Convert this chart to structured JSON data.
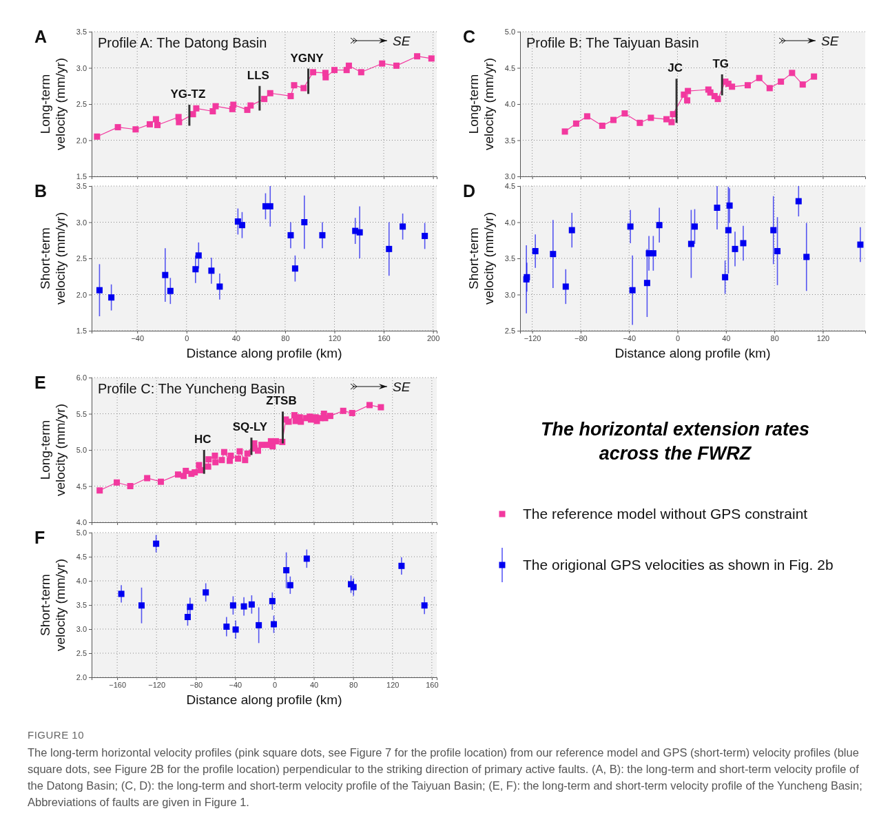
{
  "chart_data": [
    {
      "type": "line",
      "title": "A",
      "subtitle": "Profile A: The Datong Basin",
      "ylabel": "Long-term velocity (mm/yr)",
      "xlim": [
        -77,
        203
      ],
      "ylim": [
        1.5,
        3.5
      ],
      "xticks": [
        -40,
        0,
        40,
        80,
        120,
        160,
        200
      ],
      "yticks": [
        1.5,
        {
          "value": 2,
          "label": "2.0"
        },
        2.5,
        {
          "value": 3,
          "label": "3.0"
        },
        3.5
      ],
      "tick_labels": "y",
      "grid": true,
      "marker": "square",
      "annotations": [
        "SE",
        {
          "text": "YG-TZ",
          "x": 2.3,
          "y": 2.49
        },
        {
          "text": "LLS",
          "x": 59.3,
          "y": 2.75
        },
        {
          "text": "YGNY",
          "x": 98.8,
          "y": 2.99
        }
      ],
      "series": [
        {
          "type": "line",
          "marker": "none",
          "color": "#333333",
          "x": [
            2.3,
            2.3
          ],
          "values": [
            2.2,
            2.49
          ]
        },
        {
          "type": "line",
          "marker": "none",
          "color": "#333333",
          "x": [
            59.3,
            59.3
          ],
          "values": [
            2.41,
            2.75
          ]
        },
        {
          "type": "line",
          "marker": "none",
          "color": "#333333",
          "x": [
            98.8,
            98.8
          ],
          "values": [
            2.64,
            2.99
          ]
        },
        {
          "color": "#f2399f",
          "x": [
            -72.6,
            -55.7,
            -41.3,
            -29.8,
            -24.8,
            -23.6,
            -6.5,
            -6.1,
            5.2,
            7.9,
            21.3,
            23.6,
            37.2,
            38.0,
            49.3,
            52.0,
            63.1,
            67.9,
            84.5,
            87.3,
            95.0,
            102.7,
            112.7,
            112.9,
            120.0,
            129.9,
            131.7,
            141.7,
            158.7,
            170.3,
            187.1,
            198.7
          ],
          "values": [
            2.05,
            2.18,
            2.15,
            2.22,
            2.29,
            2.21,
            2.32,
            2.25,
            2.36,
            2.44,
            2.4,
            2.47,
            2.43,
            2.49,
            2.42,
            2.48,
            2.57,
            2.65,
            2.61,
            2.76,
            2.72,
            2.94,
            2.93,
            2.87,
            2.97,
            2.97,
            3.03,
            2.94,
            3.06,
            3.03,
            3.16,
            3.13
          ]
        }
      ]
    },
    {
      "type": "scatter",
      "title": "B",
      "ylabel": "Short-term velocity (mm/yr)",
      "xlabel": "Distance along profile (km)",
      "xlim": [
        -77,
        203
      ],
      "ylim": [
        1.5,
        3.5
      ],
      "xticks": [
        -40,
        0,
        40,
        80,
        120,
        160,
        200
      ],
      "yticks": [
        1.5,
        {
          "value": 2,
          "label": "2.0"
        },
        2.5,
        {
          "value": 3,
          "label": "3.0"
        },
        3.5
      ],
      "grid": true,
      "marker": "square",
      "series": [
        {
          "color": "#0000f0",
          "x": [
            -70.6,
            -61.0,
            -17.3,
            -13.1,
            7.3,
            9.8,
            20.2,
            26.9,
            41.7,
            45.1,
            64.1,
            67.9,
            84.5,
            88.1,
            95.6,
            110.2,
            136.9,
            140.5,
            164.3,
            175.4,
            193.3
          ],
          "values": [
            2.06,
            1.96,
            2.27,
            2.05,
            2.35,
            2.54,
            2.33,
            2.11,
            3.01,
            2.96,
            3.22,
            3.22,
            2.82,
            2.36,
            3.0,
            2.82,
            2.88,
            2.86,
            2.63,
            2.94,
            2.81
          ],
          "errors": [
            0.36,
            0.18,
            0.37,
            0.18,
            0.19,
            0.18,
            0.18,
            0.18,
            0.18,
            0.18,
            0.18,
            0.28,
            0.18,
            0.18,
            0.37,
            0.18,
            0.18,
            0.36,
            0.37,
            0.18,
            0.18
          ]
        }
      ]
    },
    {
      "type": "line",
      "title": "C",
      "subtitle": "Profile B: The Taiyuan Basin",
      "ylabel": "Long-term velocity (mm/yr)",
      "xlim": [
        -130,
        155
      ],
      "ylim": [
        3,
        5
      ],
      "xticks": [
        -120,
        -80,
        -40,
        0,
        40,
        80,
        120
      ],
      "yticks": [
        {
          "value": 3,
          "label": "3.0"
        },
        3.5,
        {
          "value": 4,
          "label": "4.0"
        },
        4.5,
        {
          "value": 5,
          "label": "5.0"
        }
      ],
      "tick_labels": "y",
      "grid": true,
      "marker": "square",
      "annotations": [
        "SE",
        {
          "text": "JC",
          "x": -0.8,
          "y": 4.35
        },
        {
          "text": "TG",
          "x": 36.8,
          "y": 4.41
        }
      ],
      "series": [
        {
          "type": "line",
          "marker": "none",
          "color": "#333333",
          "x": [
            -0.8,
            -0.8
          ],
          "values": [
            3.74,
            4.35
          ]
        },
        {
          "type": "line",
          "marker": "none",
          "color": "#333333",
          "x": [
            36.8,
            36.8
          ],
          "values": [
            4.12,
            4.41
          ]
        },
        {
          "color": "#f2399f",
          "x": [
            -93.0,
            -83.7,
            -74.6,
            -62.1,
            -52.9,
            -43.6,
            -31.1,
            -22.0,
            -9.1,
            -4.9,
            -3.7,
            5.3,
            8.0,
            8.6,
            25.5,
            27.1,
            30.6,
            33.3,
            39.5,
            42.0,
            45.0,
            58.0,
            67.5,
            76.1,
            85.4,
            94.6,
            103.4,
            112.7
          ],
          "values": [
            3.62,
            3.73,
            3.83,
            3.7,
            3.78,
            3.87,
            3.74,
            3.81,
            3.79,
            3.75,
            3.86,
            4.13,
            4.05,
            4.18,
            4.2,
            4.16,
            4.11,
            4.07,
            4.31,
            4.28,
            4.24,
            4.26,
            4.36,
            4.22,
            4.31,
            4.43,
            4.27,
            4.38
          ]
        }
      ]
    },
    {
      "type": "scatter",
      "title": "D",
      "ylabel": "Short-term velocity (mm/yr)",
      "xlabel": "Distance along profile (km)",
      "xlim": [
        -130,
        155
      ],
      "ylim": [
        2.5,
        4.5
      ],
      "xticks": [
        -120,
        -80,
        -40,
        0,
        40,
        80,
        120
      ],
      "yticks": [
        2.5,
        {
          "value": 3,
          "label": "3.0"
        },
        3.5,
        {
          "value": 4,
          "label": "4.0"
        },
        4.5
      ],
      "grid": true,
      "marker": "square",
      "series": [
        {
          "color": "#0000f0",
          "x": [
            -124.8,
            -124.4,
            -117.4,
            -102.8,
            -92.3,
            -87.2,
            -38.9,
            -37.2,
            -25.1,
            -23.6,
            -20.0,
            -15.0,
            11.3,
            14.2,
            32.7,
            39.3,
            42.0,
            43.0,
            47.5,
            54.3,
            79.2,
            82.5,
            100.0,
            106.5,
            151.0
          ],
          "values": [
            3.21,
            3.24,
            3.6,
            3.56,
            3.11,
            3.89,
            3.94,
            3.06,
            3.16,
            3.57,
            3.57,
            3.96,
            3.7,
            3.94,
            4.2,
            3.24,
            3.89,
            4.23,
            3.63,
            3.71,
            3.89,
            3.6,
            4.29,
            3.52,
            3.69
          ],
          "errors": [
            0.47,
            0.2,
            0.23,
            0.47,
            0.24,
            0.24,
            0.23,
            0.48,
            0.47,
            0.24,
            0.24,
            0.24,
            0.47,
            0.24,
            0.3,
            0.23,
            0.6,
            0.24,
            0.24,
            0.24,
            0.47,
            0.47,
            0.21,
            0.47,
            0.24
          ]
        }
      ]
    },
    {
      "type": "line",
      "title": "E",
      "subtitle": "Profile C: The Yuncheng Basin",
      "ylabel": "Long-term velocity (mm/yr)",
      "xlim": [
        -186,
        165
      ],
      "ylim": [
        4,
        6
      ],
      "xticks": [
        -160,
        -120,
        -80,
        -40,
        0,
        40,
        80,
        120,
        160
      ],
      "yticks": [
        {
          "value": 4,
          "label": "4.0"
        },
        4.5,
        {
          "value": 5,
          "label": "5.0"
        },
        5.5,
        {
          "value": 6,
          "label": "6.0"
        }
      ],
      "tick_labels": "y",
      "grid": true,
      "marker": "square",
      "legend": "right",
      "annotations": [
        "SE",
        {
          "text": "HC",
          "x": -71.6,
          "y": 5.0
        },
        {
          "text": "SQ-LY",
          "x": -23.5,
          "y": 5.17
        },
        {
          "text": "ZTSB",
          "x": 8.4,
          "y": 5.53
        }
      ],
      "series": [
        {
          "type": "line",
          "marker": "none",
          "color": "#333333",
          "x": [
            -71.6,
            -71.6
          ],
          "values": [
            4.67,
            5.0
          ]
        },
        {
          "type": "line",
          "marker": "none",
          "color": "#333333",
          "x": [
            -23.5,
            -23.5
          ],
          "values": [
            4.93,
            5.17
          ]
        },
        {
          "type": "line",
          "marker": "none",
          "color": "#333333",
          "x": [
            8.4,
            8.4
          ],
          "values": [
            5.09,
            5.53
          ]
        },
        {
          "name": "The reference model without GPS constraint",
          "color": "#f2399f",
          "x": [
            -177.8,
            -160.4,
            -146.7,
            -129.5,
            -115.6,
            -98.1,
            -92.4,
            -90.2,
            -84.5,
            -81.1,
            -76.8,
            -75.2,
            -67.5,
            -67.0,
            -60.6,
            -60.1,
            -53.6,
            -51.2,
            -45.5,
            -44.5,
            -37.1,
            -35.4,
            -29.9,
            -27.5,
            -20.6,
            -20.3,
            -16.8,
            -13.2,
            -7.2,
            -3.6,
            -1.9,
            1.4,
            7.9,
            11.5,
            14.4,
            20.3,
            21.5,
            25.8,
            26.8,
            32.3,
            35.9,
            37.1,
            41.9,
            43.1,
            46.7,
            50.3,
            51.5,
            56.7,
            69.9,
            79.0,
            96.7,
            108.2
          ],
          "values": [
            4.44,
            4.55,
            4.5,
            4.61,
            4.56,
            4.66,
            4.64,
            4.71,
            4.67,
            4.69,
            4.79,
            4.72,
            4.77,
            4.87,
            4.92,
            4.83,
            4.86,
            4.97,
            4.85,
            4.92,
            4.88,
            4.98,
            4.86,
            4.95,
            5.09,
            5.02,
            4.99,
            5.07,
            5.07,
            5.12,
            5.05,
            5.12,
            5.11,
            5.42,
            5.39,
            5.48,
            5.4,
            5.45,
            5.39,
            5.44,
            5.46,
            5.42,
            5.45,
            5.4,
            5.44,
            5.5,
            5.44,
            5.47,
            5.54,
            5.51,
            5.62,
            5.59
          ]
        }
      ]
    },
    {
      "type": "scatter",
      "title": "F",
      "ylabel": "Short-term velocity (mm/yr)",
      "xlabel": "Distance along profile (km)",
      "xlim": [
        -186,
        165
      ],
      "ylim": [
        2,
        5
      ],
      "xticks": [
        -160,
        -120,
        -80,
        -40,
        0,
        40,
        80,
        120,
        160
      ],
      "yticks": [
        {
          "value": 2,
          "label": "2.0"
        },
        2.5,
        {
          "value": 3,
          "label": "3.0"
        },
        3.5,
        {
          "value": 4,
          "label": "4.0"
        },
        4.5,
        {
          "value": 5,
          "label": "5.0"
        }
      ],
      "grid": true,
      "marker": "square",
      "legend": "right",
      "series": [
        {
          "name": "The origional GPS velocities as shown in Fig. 2b",
          "color": "#0000f0",
          "x": [
            -155.8,
            -135.2,
            -120.4,
            -88.3,
            -85.9,
            -69.9,
            -48.8,
            -42.1,
            -39.5,
            -31.1,
            -23.2,
            -16.0,
            -2.2,
            -0.7,
            12.0,
            16.0,
            32.8,
            77.8,
            80.4,
            129.2,
            152.5
          ],
          "values": [
            3.73,
            3.49,
            4.77,
            3.25,
            3.46,
            3.76,
            3.05,
            3.49,
            2.99,
            3.47,
            3.51,
            3.08,
            3.58,
            3.1,
            4.22,
            3.91,
            4.46,
            3.93,
            3.87,
            4.31,
            3.49
          ],
          "errors": [
            0.18,
            0.37,
            0.18,
            0.18,
            0.19,
            0.19,
            0.2,
            0.19,
            0.19,
            0.19,
            0.19,
            0.37,
            0.18,
            0.18,
            0.37,
            0.18,
            0.19,
            0.18,
            0.18,
            0.18,
            0.18
          ]
        }
      ]
    },
    {
      "type": "other",
      "title": "The horizontal extension rates across the FWRZ",
      "annotations": [
        "FIGURE 10",
        "The long-term horizontal velocity profiles (pink square dots, see Figure 7 for the profile location) from our reference model and GPS (short-term) velocity profiles (blue square dots, see Figure 2B for the profile location) perpendicular to the striking direction of primary active faults. (A, B): the long-term and short-term velocity profile of the Datong Basin; (C, D): the long-term and short-term velocity profile of the Taiyuan Basin; (E, F): the long-term and short-term velocity profile of the Yuncheng Basin; Abbreviations of faults are given in Figure 1."
      ]
    }
  ]
}
